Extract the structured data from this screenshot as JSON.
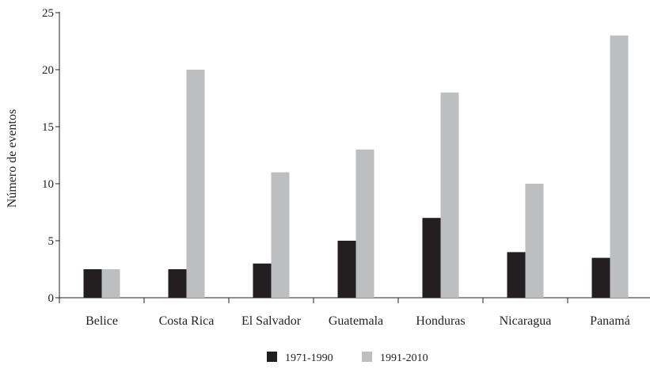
{
  "chart_data": {
    "type": "bar",
    "ylabel": "Número de eventos",
    "xlabel": "",
    "ylim": [
      0,
      25
    ],
    "yticks": [
      0,
      5,
      10,
      15,
      20,
      25
    ],
    "grid": false,
    "legend_position": "bottom-center",
    "categories": [
      "Belice",
      "Costa Rica",
      "El Salvador",
      "Guatemala",
      "Honduras",
      "Nicaragua",
      "Panamá"
    ],
    "series": [
      {
        "name": "1971-1990",
        "color": "#231f20",
        "values": [
          2.5,
          2.5,
          3,
          5,
          7,
          4,
          3.5
        ]
      },
      {
        "name": "1991-2010",
        "color": "#bcbec0",
        "values": [
          2.5,
          20,
          11,
          13,
          18,
          10,
          23
        ]
      }
    ]
  }
}
